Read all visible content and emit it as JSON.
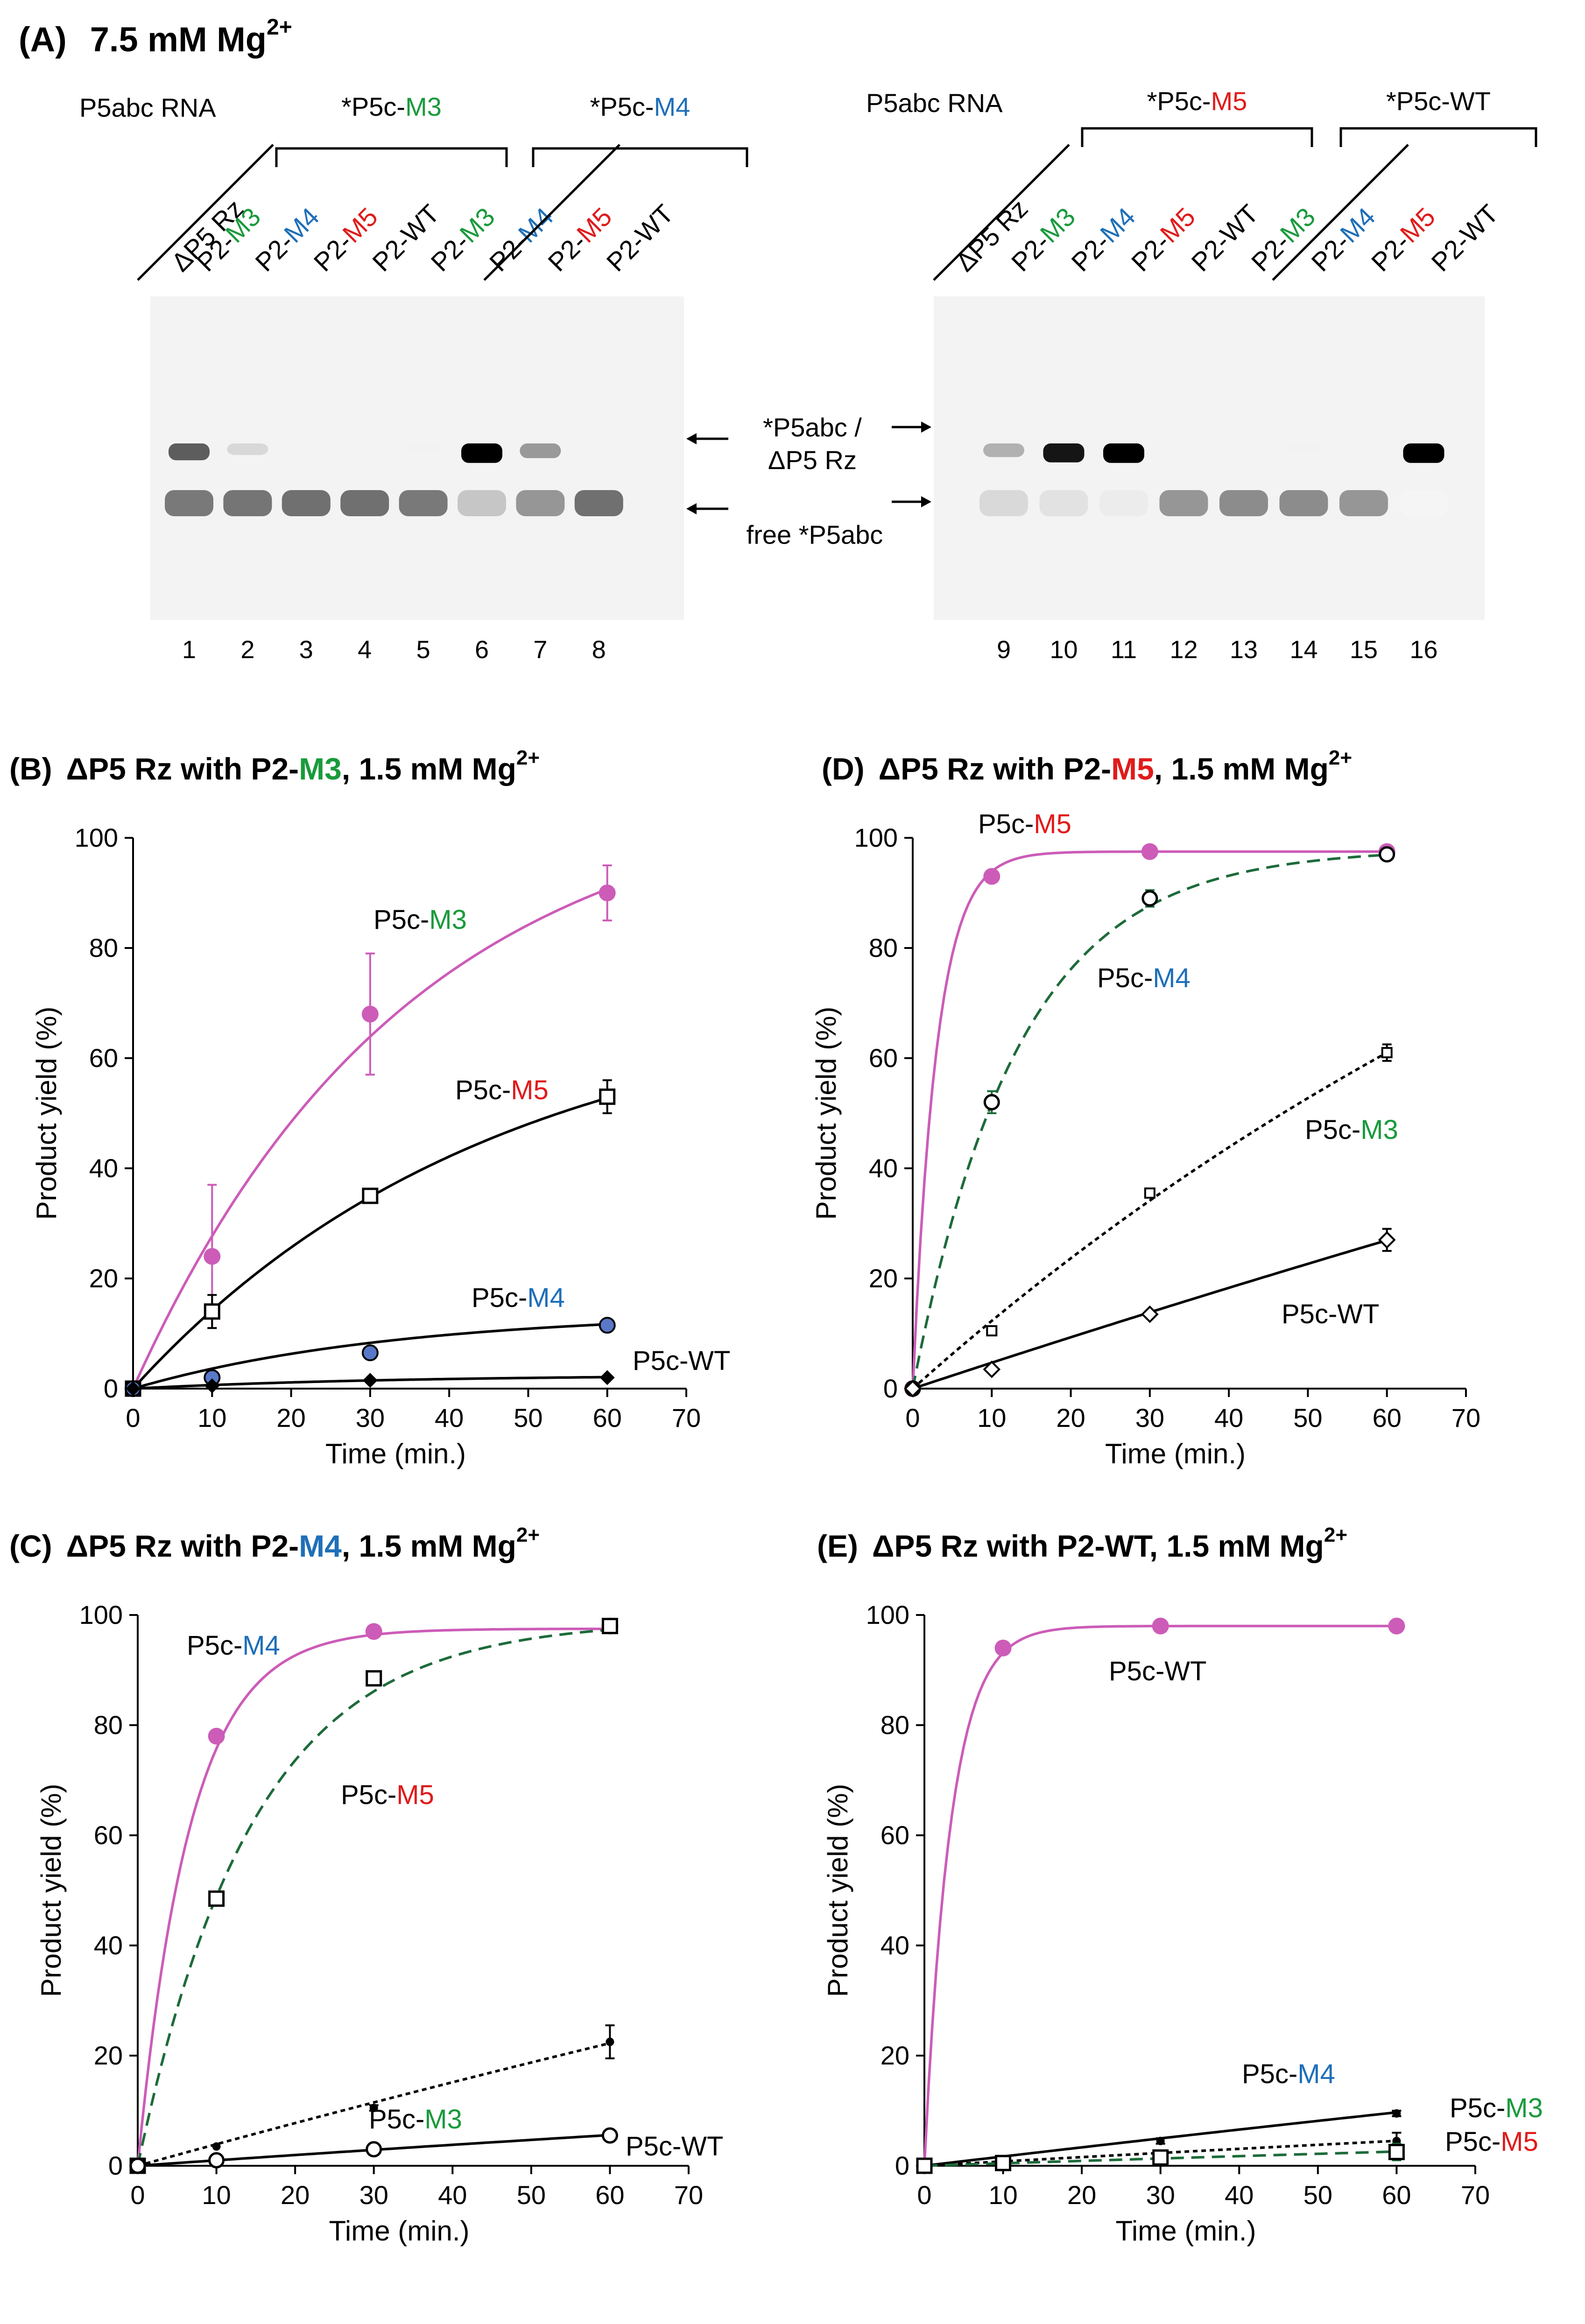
{
  "colors": {
    "green": "#1a9a3c",
    "blue": "#1f6fb8",
    "red": "#e01b1b",
    "magenta": "#cc5cb8",
    "darkgreen": "#1d6b3a",
    "black": "#000000"
  },
  "panel_a": {
    "heading_label": "(A)",
    "heading_text": "7.5 mM Mg",
    "heading_sup": "2+",
    "gels": [
      {
        "rna_label": "P5abc RNA",
        "group1": {
          "prefix": "*P5c-",
          "suffix": "M3",
          "color": "green"
        },
        "group2": {
          "prefix": "*P5c-",
          "suffix": "M4",
          "color": "blue"
        },
        "lanes": [
          {
            "prefix": "ΔP5 Rz",
            "suffix": "",
            "color": "black"
          },
          {
            "prefix": "P2-",
            "suffix": "M3",
            "color": "green"
          },
          {
            "prefix": "P2-",
            "suffix": "M4",
            "color": "blue"
          },
          {
            "prefix": "P2-",
            "suffix": "M5",
            "color": "red"
          },
          {
            "prefix": "P2-",
            "suffix": "WT",
            "color": "black"
          },
          {
            "prefix": "P2-",
            "suffix": "M3",
            "color": "green"
          },
          {
            "prefix": "P2-",
            "suffix": "M4",
            "color": "blue"
          },
          {
            "prefix": "P2-",
            "suffix": "M5",
            "color": "red"
          },
          {
            "prefix": "P2-",
            "suffix": "WT",
            "color": "black"
          }
        ],
        "lane_numbers": [
          "1",
          "2",
          "3",
          "4",
          "5",
          "6",
          "7",
          "8"
        ],
        "complex_band": [
          0.75,
          0.25,
          0.0,
          0.0,
          0.05,
          1.0,
          0.55,
          0.0
        ],
        "free_band": [
          0.7,
          0.72,
          0.75,
          0.75,
          0.7,
          0.3,
          0.55,
          0.75
        ]
      },
      {
        "rna_label": "P5abc RNA",
        "group1": {
          "prefix": "*P5c-",
          "suffix": "M5",
          "color": "red"
        },
        "group2": {
          "prefix": "*P5c-",
          "suffix": "WT",
          "color": "black"
        },
        "lanes": [
          {
            "prefix": "ΔP5 Rz",
            "suffix": "",
            "color": "black"
          },
          {
            "prefix": "P2-",
            "suffix": "M3",
            "color": "green"
          },
          {
            "prefix": "P2-",
            "suffix": "M4",
            "color": "blue"
          },
          {
            "prefix": "P2-",
            "suffix": "M5",
            "color": "red"
          },
          {
            "prefix": "P2-",
            "suffix": "WT",
            "color": "black"
          },
          {
            "prefix": "P2-",
            "suffix": "M3",
            "color": "green"
          },
          {
            "prefix": "P2-",
            "suffix": "M4",
            "color": "blue"
          },
          {
            "prefix": "P2-",
            "suffix": "M5",
            "color": "red"
          },
          {
            "prefix": "P2-",
            "suffix": "WT",
            "color": "black"
          }
        ],
        "lane_numbers": [
          "9",
          "10",
          "11",
          "12",
          "13",
          "14",
          "15",
          "16"
        ],
        "complex_band": [
          0.45,
          0.95,
          1.0,
          0.0,
          0.0,
          0.05,
          0.0,
          1.0
        ],
        "free_band": [
          0.2,
          0.15,
          0.1,
          0.55,
          0.6,
          0.6,
          0.55,
          0.05
        ]
      }
    ],
    "arrow_complex_line1": "*P5abc /",
    "arrow_complex_line2": "ΔP5 Rz",
    "arrow_free": "free *P5abc"
  },
  "chart_data": [
    {
      "id": "B",
      "type": "line",
      "title_label": "(B)",
      "title_parts": [
        {
          "text": "ΔP5 Rz with P2-",
          "color": "black"
        },
        {
          "text": "M3",
          "color": "green"
        },
        {
          "text": ", 1.5 mM Mg",
          "color": "black"
        }
      ],
      "title_sup": "2+",
      "xlabel": "Time (min.)",
      "ylabel": "Product yield (%)",
      "xlim": [
        0,
        70
      ],
      "ylim": [
        0,
        100
      ],
      "xticks": [
        "0",
        "10",
        "20",
        "30",
        "40",
        "50",
        "60",
        "70"
      ],
      "yticks": [
        "0",
        "20",
        "40",
        "60",
        "80",
        "100"
      ],
      "series": [
        {
          "name_prefix": "P5c-",
          "name_suffix": "M3",
          "suffix_color": "green",
          "marker": "filled-circle",
          "line_color": "magenta",
          "dash": "solid",
          "x": [
            0,
            10,
            30,
            60
          ],
          "y": [
            0,
            24,
            68,
            90
          ],
          "err": [
            0,
            13,
            11,
            5
          ],
          "fit": {
            "A": 110,
            "k": 0.029
          }
        },
        {
          "name_prefix": "P5c-",
          "name_suffix": "M5",
          "suffix_color": "red",
          "marker": "open-square",
          "line_color": "black",
          "dash": "solid",
          "x": [
            0,
            10,
            30,
            60
          ],
          "y": [
            0,
            14,
            35,
            53
          ],
          "err": [
            0,
            3,
            1,
            3
          ],
          "fit": {
            "A": 72,
            "k": 0.022
          }
        },
        {
          "name_prefix": "P5c-",
          "name_suffix": "M4",
          "suffix_color": "blue",
          "marker": "blue-circle",
          "line_color": "black",
          "dash": "solid",
          "x": [
            0,
            10,
            30,
            60
          ],
          "y": [
            0,
            2,
            6.5,
            11.5
          ],
          "err": [
            0,
            0.5,
            0.5,
            0.5
          ],
          "fit": {
            "A": 14,
            "k": 0.03
          }
        },
        {
          "name_prefix": "P5c-",
          "name_suffix": "WT",
          "suffix_color": "black",
          "marker": "filled-diamond",
          "line_color": "black",
          "dash": "solid",
          "x": [
            0,
            10,
            30,
            60
          ],
          "y": [
            0,
            0.5,
            1.5,
            2
          ],
          "err": [
            0,
            0,
            0,
            0
          ],
          "fit": {
            "A": 2.5,
            "k": 0.03
          }
        }
      ]
    },
    {
      "id": "D",
      "type": "line",
      "title_label": "(D)",
      "title_parts": [
        {
          "text": "ΔP5 Rz with P2-",
          "color": "black"
        },
        {
          "text": "M5",
          "color": "red"
        },
        {
          "text": ", 1.5 mM Mg",
          "color": "black"
        }
      ],
      "title_sup": "2+",
      "xlabel": "Time (min.)",
      "ylabel": "Product yield (%)",
      "xlim": [
        0,
        70
      ],
      "ylim": [
        0,
        100
      ],
      "xticks": [
        "0",
        "10",
        "20",
        "30",
        "40",
        "50",
        "60",
        "70"
      ],
      "yticks": [
        "0",
        "20",
        "40",
        "60",
        "80",
        "100"
      ],
      "series": [
        {
          "name_prefix": "P5c-",
          "name_suffix": "M5",
          "suffix_color": "red",
          "marker": "filled-circle",
          "line_color": "magenta",
          "dash": "solid",
          "x": [
            0,
            10,
            30,
            60
          ],
          "y": [
            0,
            93,
            97.5,
            97.5
          ],
          "err": [
            0,
            0,
            0,
            0
          ],
          "fit": {
            "A": 97.5,
            "k": 0.33
          }
        },
        {
          "name_prefix": "P5c-",
          "name_suffix": "M4",
          "suffix_color": "blue",
          "marker": "open-circle",
          "line_color": "darkgreen",
          "dash": "dashed",
          "x": [
            0,
            10,
            30,
            60
          ],
          "y": [
            0,
            52,
            89,
            97
          ],
          "err": [
            0,
            2,
            1.5,
            0.5
          ],
          "fit": {
            "A": 98,
            "k": 0.075
          }
        },
        {
          "name_prefix": "P5c-",
          "name_suffix": "M3",
          "suffix_color": "green",
          "marker": "small-square",
          "line_color": "black",
          "dash": "dotted",
          "x": [
            0,
            10,
            30,
            60
          ],
          "y": [
            0,
            10.5,
            35.5,
            61
          ],
          "err": [
            0,
            0.5,
            0.5,
            1.5
          ],
          "fit": {
            "A": 160,
            "k": 0.008
          }
        },
        {
          "name_prefix": "P5c-",
          "name_suffix": "WT",
          "suffix_color": "black",
          "marker": "open-diamond",
          "line_color": "black",
          "dash": "solid",
          "x": [
            0,
            10,
            30,
            60
          ],
          "y": [
            0,
            3.5,
            13.5,
            27
          ],
          "err": [
            0,
            0,
            0,
            2
          ],
          "fit": {
            "A": 250,
            "k": 0.0019
          }
        }
      ]
    },
    {
      "id": "C",
      "type": "line",
      "title_label": "(C)",
      "title_parts": [
        {
          "text": "ΔP5 Rz with P2-",
          "color": "black"
        },
        {
          "text": "M4",
          "color": "blue"
        },
        {
          "text": ", 1.5 mM Mg",
          "color": "black"
        }
      ],
      "title_sup": "2+",
      "xlabel": "Time (min.)",
      "ylabel": "Product yield (%)",
      "xlim": [
        0,
        70
      ],
      "ylim": [
        0,
        100
      ],
      "xticks": [
        "0",
        "10",
        "20",
        "30",
        "40",
        "50",
        "60",
        "70"
      ],
      "yticks": [
        "0",
        "20",
        "40",
        "60",
        "80",
        "100"
      ],
      "series": [
        {
          "name_prefix": "P5c-",
          "name_suffix": "M4",
          "suffix_color": "blue",
          "marker": "filled-circle",
          "line_color": "magenta",
          "dash": "solid",
          "x": [
            0,
            10,
            30,
            60
          ],
          "y": [
            0,
            78,
            97,
            98
          ],
          "err": [
            0,
            0,
            0,
            0
          ],
          "fit": {
            "A": 97.5,
            "k": 0.15
          }
        },
        {
          "name_prefix": "P5c-",
          "name_suffix": "M5",
          "suffix_color": "red",
          "marker": "open-square",
          "line_color": "darkgreen",
          "dash": "dashed",
          "x": [
            0,
            10,
            30,
            60
          ],
          "y": [
            0,
            48.5,
            88.5,
            98
          ],
          "err": [
            0,
            0.5,
            0.5,
            0.5
          ],
          "fit": {
            "A": 99,
            "k": 0.068
          }
        },
        {
          "name_prefix": "P5c-",
          "name_suffix": "M3",
          "suffix_color": "green",
          "marker": "small-filled",
          "line_color": "black",
          "dash": "dotted",
          "x": [
            0,
            10,
            30,
            60
          ],
          "y": [
            0,
            3.5,
            10.5,
            22.5
          ],
          "err": [
            0,
            0,
            0.5,
            3
          ],
          "fit": {
            "A": 180,
            "k": 0.0022
          }
        },
        {
          "name_prefix": "P5c-",
          "name_suffix": "WT",
          "suffix_color": "black",
          "marker": "open-circle",
          "line_color": "black",
          "dash": "solid",
          "x": [
            0,
            10,
            30,
            60
          ],
          "y": [
            0,
            1,
            3,
            5.5
          ],
          "err": [
            0,
            0,
            0,
            0
          ],
          "fit": {
            "A": 40,
            "k": 0.0025
          }
        }
      ]
    },
    {
      "id": "E",
      "type": "line",
      "title_label": "(E)",
      "title_parts": [
        {
          "text": "ΔP5 Rz with P2-WT, 1.5 mM Mg",
          "color": "black"
        }
      ],
      "title_sup": "2+",
      "xlabel": "Time (min.)",
      "ylabel": "Product yield (%)",
      "xlim": [
        0,
        70
      ],
      "ylim": [
        0,
        100
      ],
      "xticks": [
        "0",
        "10",
        "20",
        "30",
        "40",
        "50",
        "60",
        "70"
      ],
      "yticks": [
        "0",
        "20",
        "40",
        "60",
        "80",
        "100"
      ],
      "series": [
        {
          "name_prefix": "P5c-",
          "name_suffix": "WT",
          "suffix_color": "black",
          "marker": "filled-circle",
          "line_color": "magenta",
          "dash": "solid",
          "x": [
            0,
            10,
            30,
            60
          ],
          "y": [
            0,
            94,
            98,
            98
          ],
          "err": [
            0,
            0,
            0,
            0
          ],
          "fit": {
            "A": 98,
            "k": 0.3
          }
        },
        {
          "name_prefix": "P5c-",
          "name_suffix": "M4",
          "suffix_color": "blue",
          "marker": "small-filled",
          "line_color": "black",
          "dash": "solid",
          "x": [
            0,
            10,
            30,
            60
          ],
          "y": [
            0,
            1,
            4.5,
            9.5
          ],
          "err": [
            0,
            0,
            0.5,
            0.5
          ],
          "fit": {
            "A": 100,
            "k": 0.0017
          }
        },
        {
          "name_prefix": "P5c-",
          "name_suffix": "M3",
          "suffix_color": "green",
          "marker": "small-filled",
          "line_color": "black",
          "dash": "dotted",
          "x": [
            0,
            10,
            30,
            60
          ],
          "y": [
            0,
            0.5,
            2,
            4.5
          ],
          "err": [
            0,
            0,
            0,
            1.5
          ],
          "fit": {
            "A": 40,
            "k": 0.002
          }
        },
        {
          "name_prefix": "P5c-",
          "name_suffix": "M5",
          "suffix_color": "red",
          "marker": "open-square",
          "line_color": "darkgreen",
          "dash": "dashed",
          "x": [
            0,
            10,
            30,
            60
          ],
          "y": [
            0,
            0.5,
            1.5,
            2.5
          ],
          "err": [
            0,
            0,
            0.5,
            1.5
          ],
          "fit": {
            "A": 30,
            "k": 0.0015
          }
        }
      ]
    }
  ]
}
